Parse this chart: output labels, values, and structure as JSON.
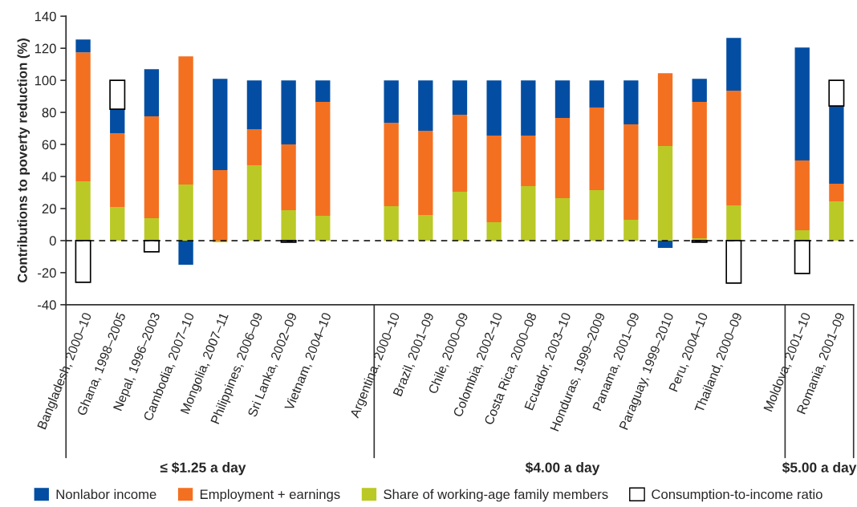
{
  "chart_data": {
    "type": "bar",
    "stacked": true,
    "ylabel": "Contributions to poverty reduction (%)",
    "categories": [
      "Bangladesh, 2000–10",
      "Ghana, 1998–2005",
      "Nepal, 1996–2003",
      "Cambodia, 2007–10",
      "Mongolia, 2007–11",
      "Philippines, 2006–09",
      "Sri Lanka, 2002–09",
      "Vietnam, 2004–10",
      null,
      "Argentina, 2000–10",
      "Brazil, 2001–09",
      "Chile, 2000–09",
      "Colombia, 2002–10",
      "Costa Rica, 2000–08",
      "Ecuador, 2003–10",
      "Honduras, 1999–2009",
      "Panama, 2001–09",
      "Paraguay, 1999–2010",
      "Peru, 2004–10",
      "Thailand, 2000–09",
      null,
      "Moldova, 2001–10",
      "Romania, 2001–09"
    ],
    "series": [
      {
        "name": "Share of working-age family members",
        "color": "#bac926",
        "values": [
          37,
          21,
          14,
          35,
          -1,
          47,
          19,
          15.5,
          null,
          21.5,
          16,
          30.5,
          11.5,
          34,
          26.5,
          31.5,
          13,
          59,
          1.5,
          22,
          null,
          6.5,
          24.5
        ]
      },
      {
        "name": "Employment + earnings",
        "color": "#f37021",
        "values": [
          80.5,
          46,
          63.5,
          80,
          44,
          22.5,
          41,
          71,
          null,
          52,
          52.5,
          48,
          54,
          31.5,
          50,
          51.5,
          59.5,
          45.5,
          85,
          71.5,
          null,
          43.5,
          11
        ]
      },
      {
        "name": "Nonlabor income",
        "color": "#034ea2",
        "values": [
          8,
          15,
          29.5,
          -15,
          57,
          30.5,
          40,
          13.5,
          null,
          26.5,
          31.5,
          21.5,
          34.5,
          34.5,
          23.5,
          17,
          27.5,
          -4.5,
          14.5,
          33,
          null,
          70.5,
          48.5
        ]
      },
      {
        "name": "Consumption-to-income ratio",
        "color": "#ffffff",
        "values": [
          -26,
          18,
          -7,
          null,
          null,
          null,
          -1,
          null,
          null,
          null,
          null,
          null,
          null,
          null,
          null,
          null,
          null,
          null,
          -1,
          -26.5,
          null,
          -20.5,
          16
        ]
      }
    ],
    "ylim": [
      -40,
      140
    ],
    "yticks": [
      -40,
      -20,
      0,
      20,
      40,
      60,
      80,
      100,
      120,
      140
    ],
    "ref_lines": [
      {
        "axis": "y",
        "value": 0,
        "color": "#000000",
        "line_style": "dashed"
      }
    ],
    "annotations": [
      "≤ $1.25 a day",
      "$4.00 a day",
      "$5.00 a day"
    ],
    "grid": false,
    "legend": "bottom"
  }
}
